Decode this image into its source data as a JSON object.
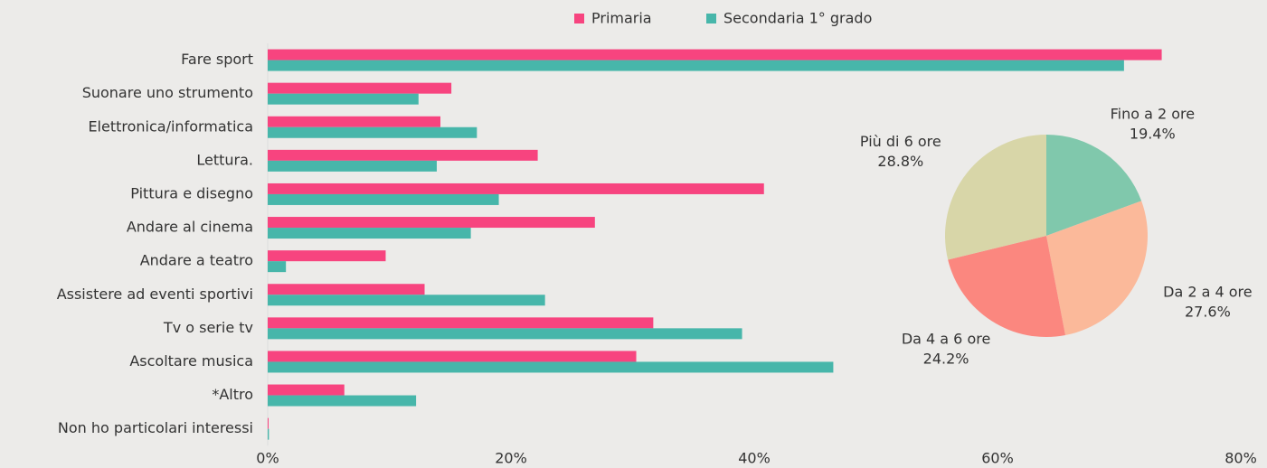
{
  "chart_data": [
    {
      "type": "bar",
      "orientation": "horizontal",
      "categories": [
        "Fare sport",
        "Suonare uno strumento",
        "Elettronica/informatica",
        "Lettura.",
        "Pittura e disegno",
        "Andare al cinema",
        "Andare a teatro",
        "Assistere ad eventi sportivi",
        "Tv o serie tv",
        "Ascoltare musica",
        "*Altro",
        "Non ho particolari interessi"
      ],
      "series": [
        {
          "name": "Primaria",
          "color": "#f7447f",
          "values": [
            73.5,
            15.1,
            14.2,
            22.2,
            40.8,
            26.9,
            9.7,
            12.9,
            31.7,
            30.3,
            6.3,
            0
          ]
        },
        {
          "name": "Secondaria 1° grado",
          "color": "#47b6aa",
          "values": [
            70.4,
            12.4,
            17.2,
            13.9,
            19.0,
            16.7,
            1.5,
            22.8,
            39.0,
            46.5,
            12.2,
            0.1
          ]
        }
      ],
      "xlim": [
        0,
        80
      ],
      "xticks": [
        {
          "value": 0,
          "label": "0%"
        },
        {
          "value": 20,
          "label": "20%"
        },
        {
          "value": 40,
          "label": "40%"
        },
        {
          "value": 60,
          "label": "60%"
        },
        {
          "value": 80,
          "label": "80%"
        }
      ],
      "legend": "top"
    },
    {
      "type": "pie",
      "categories": [
        "Fino a 2 ore",
        "Da 2 a 4 ore",
        "Da 4 a 6 ore",
        "Più di 6 ore"
      ],
      "values": [
        19.4,
        27.6,
        24.2,
        28.8
      ],
      "value_labels": [
        "19.4%",
        "27.6%",
        "24.2%",
        "28.8%"
      ],
      "colors": [
        "#80c8ac",
        "#fbb99a",
        "#fb877f",
        "#d8d6a8"
      ]
    }
  ]
}
